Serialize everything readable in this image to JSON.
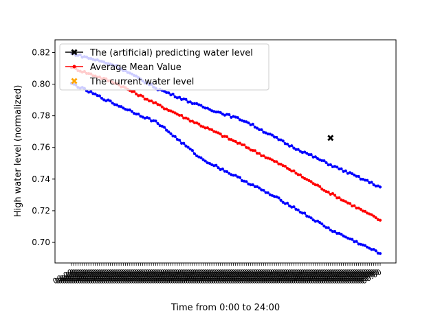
{
  "chart_data": {
    "type": "line",
    "title": "",
    "xlabel": "Time from 0:00 to 24:00",
    "ylabel": "High water level (normalized)",
    "ylim": [
      0.687,
      0.828
    ],
    "yticks": [
      0.7,
      0.72,
      0.74,
      0.76,
      0.78,
      0.8,
      0.82
    ],
    "ytick_labels": [
      "0.70",
      "0.72",
      "0.74",
      "0.76",
      "0.78",
      "0.80",
      "0.82"
    ],
    "x_count": 144,
    "x_tick_label": "00:00",
    "grid": false,
    "legend_position": "upper-left",
    "series": [
      {
        "name": "The (artificial) predicting water level",
        "color": "#000000",
        "marker": "x",
        "points": [
          {
            "x": 120,
            "y": 0.766
          }
        ]
      },
      {
        "name": "Average Mean Value",
        "color": "#ff0000",
        "marker": "dot",
        "anchors": [
          [
            0,
            0.8105
          ],
          [
            20,
            0.801
          ],
          [
            40,
            0.787
          ],
          [
            60,
            0.774
          ],
          [
            80,
            0.761
          ],
          [
            100,
            0.747
          ],
          [
            120,
            0.731
          ],
          [
            143,
            0.714
          ]
        ]
      },
      {
        "name": "The current water level",
        "color": "#ffa500",
        "marker": "x",
        "points": []
      },
      {
        "name": "",
        "color": "#0000ff",
        "marker": "dot",
        "anchors": [
          [
            0,
            0.8195
          ],
          [
            20,
            0.812
          ],
          [
            40,
            0.797
          ],
          [
            60,
            0.786
          ],
          [
            80,
            0.777
          ],
          [
            100,
            0.762
          ],
          [
            120,
            0.749
          ],
          [
            143,
            0.735
          ]
        ]
      },
      {
        "name": "",
        "color": "#0000ff",
        "marker": "dot",
        "anchors": [
          [
            0,
            0.8005
          ],
          [
            20,
            0.7875
          ],
          [
            40,
            0.7755
          ],
          [
            60,
            0.753
          ],
          [
            80,
            0.739
          ],
          [
            100,
            0.7245
          ],
          [
            120,
            0.708
          ],
          [
            143,
            0.693
          ]
        ]
      }
    ]
  }
}
